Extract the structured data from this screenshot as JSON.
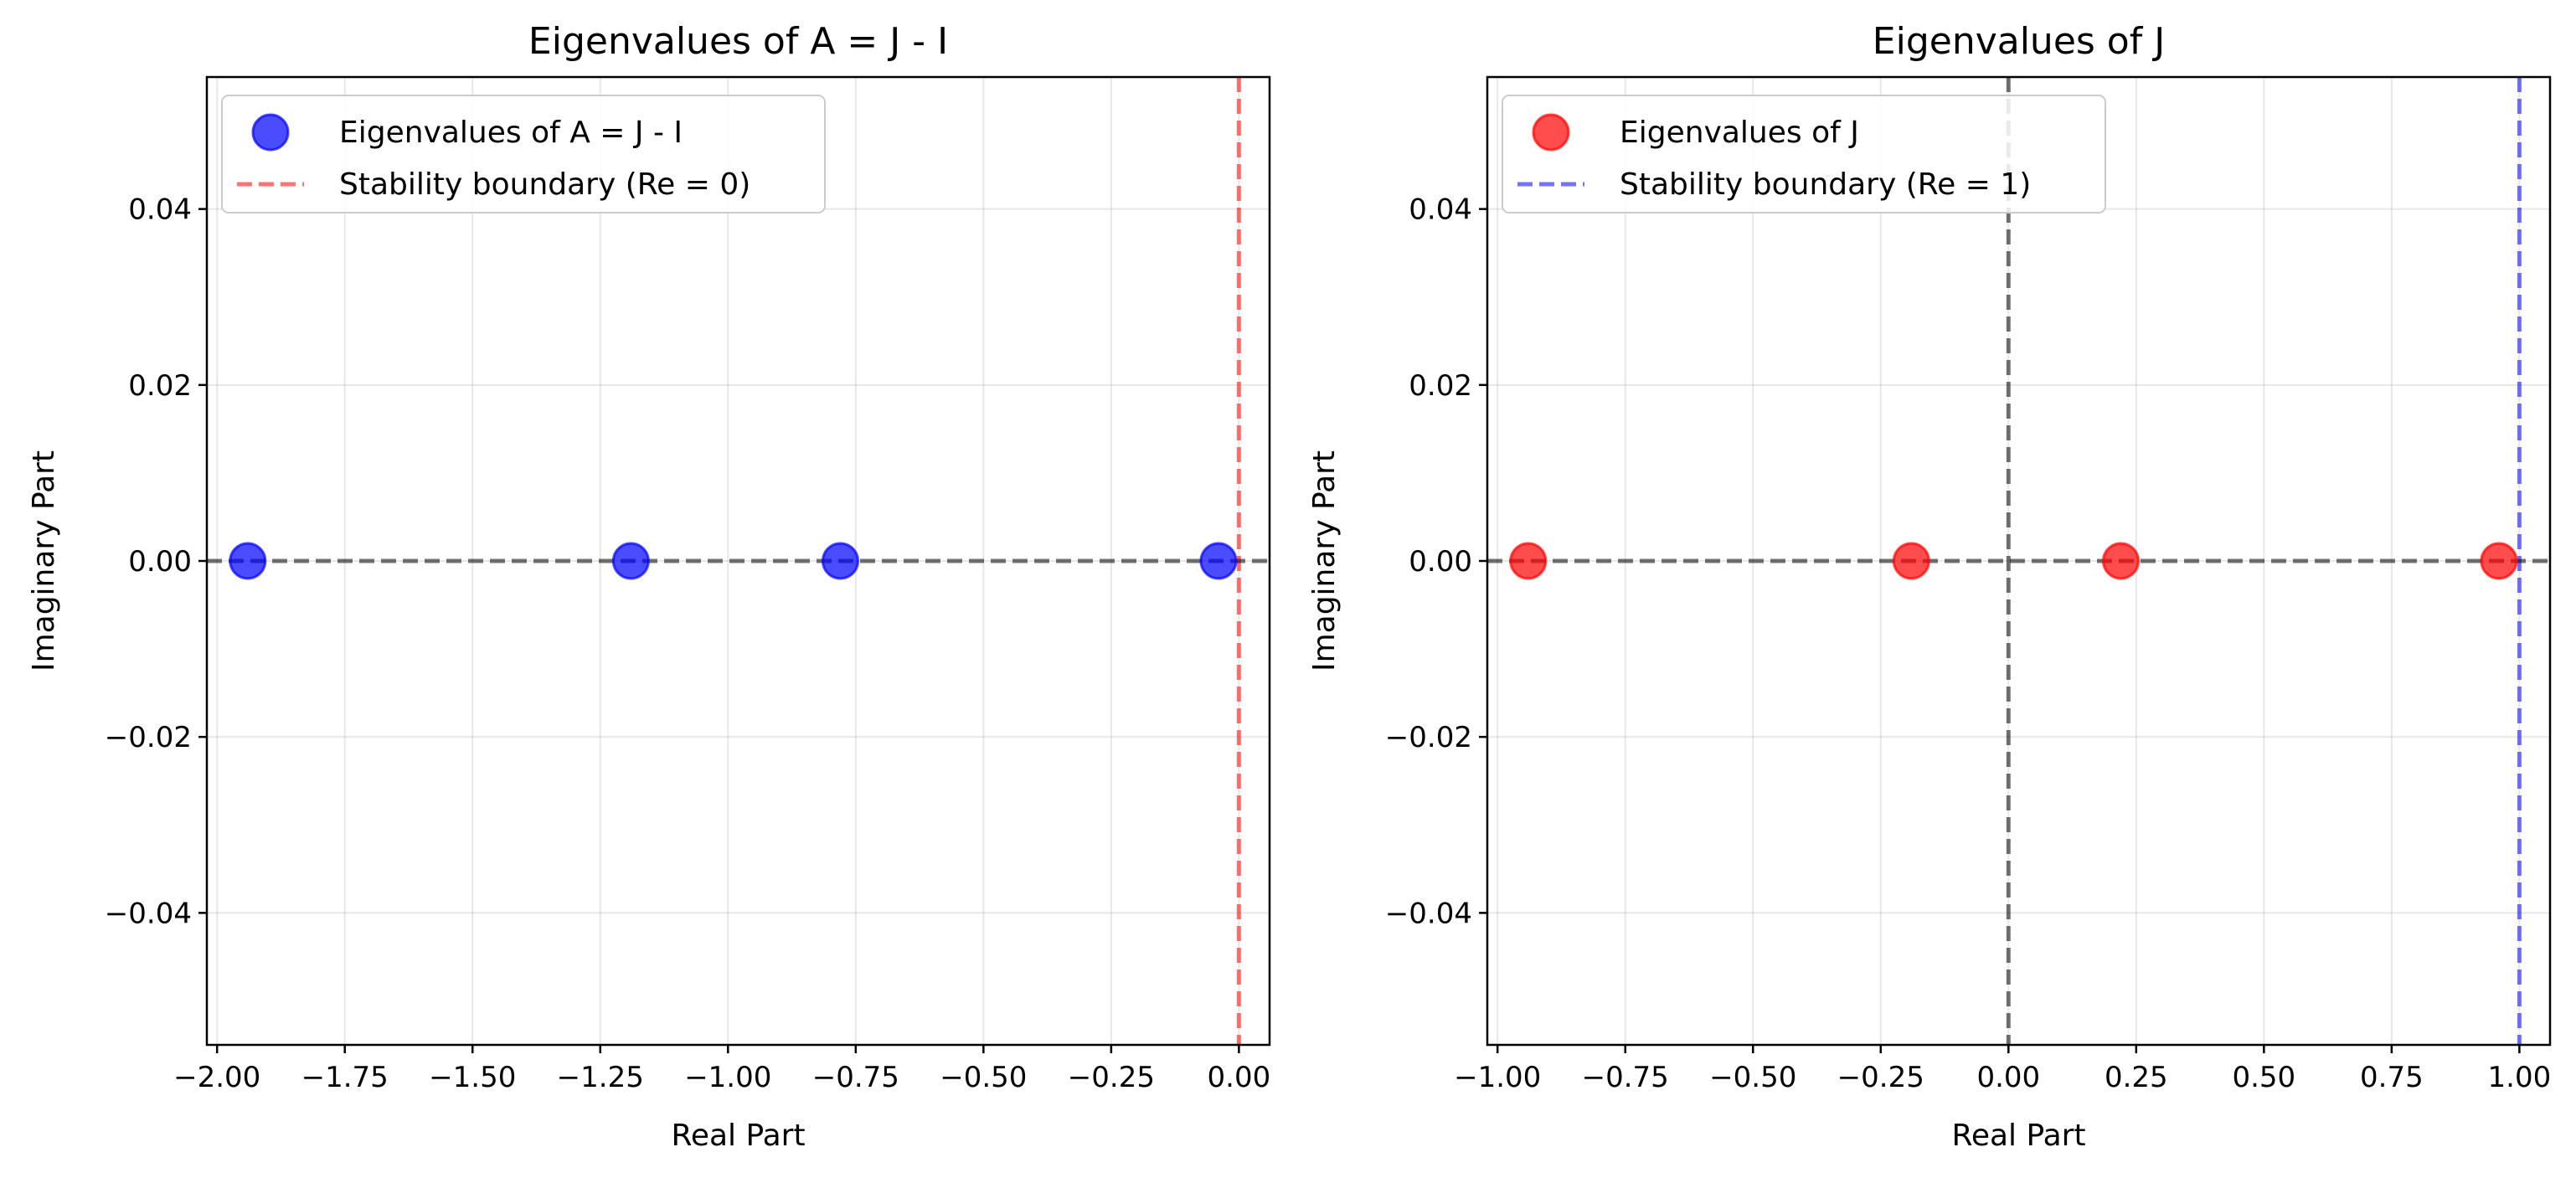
{
  "chart_data": [
    {
      "type": "scatter",
      "title": "Eigenvalues of A = J - I",
      "xlabel": "Real Part",
      "ylabel": "Imaginary Part",
      "xlim": [
        -2.02,
        0.06
      ],
      "ylim": [
        -0.055,
        0.055
      ],
      "xticks": [
        -2.0,
        -1.75,
        -1.5,
        -1.25,
        -1.0,
        -0.75,
        -0.5,
        -0.25,
        0.0
      ],
      "xtick_labels": [
        "−2.00",
        "−1.75",
        "−1.50",
        "−1.25",
        "−1.00",
        "−0.75",
        "−0.50",
        "−0.25",
        "0.00"
      ],
      "yticks": [
        0.04,
        0.02,
        0.0,
        -0.02,
        -0.04
      ],
      "ytick_labels": [
        "0.04",
        "0.02",
        "0.00",
        "−0.02",
        "−0.04"
      ],
      "grid": true,
      "legend_position": "top-left",
      "series": [
        {
          "name": "Eigenvalues of A = J - I",
          "color": "#0000ff",
          "x": [
            -1.94,
            -1.19,
            -0.78,
            -0.04
          ],
          "y": [
            0,
            0,
            0,
            0
          ]
        }
      ],
      "reference_lines": [
        {
          "name": "Stability boundary (Re = 0)",
          "orientation": "vertical",
          "value": 0,
          "color": "#ff0000",
          "legend": true
        },
        {
          "orientation": "horizontal",
          "value": 0,
          "color": "#000000",
          "legend": false
        }
      ]
    },
    {
      "type": "scatter",
      "title": "Eigenvalues of J",
      "xlabel": "Real Part",
      "ylabel": "Imaginary Part",
      "xlim": [
        -1.02,
        1.06
      ],
      "ylim": [
        -0.055,
        0.055
      ],
      "xticks": [
        -1.0,
        -0.75,
        -0.5,
        -0.25,
        0.0,
        0.25,
        0.5,
        0.75,
        1.0
      ],
      "xtick_labels": [
        "−1.00",
        "−0.75",
        "−0.50",
        "−0.25",
        "0.00",
        "0.25",
        "0.50",
        "0.75",
        "1.00"
      ],
      "yticks": [
        0.04,
        0.02,
        0.0,
        -0.02,
        -0.04
      ],
      "ytick_labels": [
        "0.04",
        "0.02",
        "0.00",
        "−0.02",
        "−0.04"
      ],
      "grid": true,
      "legend_position": "top-left",
      "series": [
        {
          "name": "Eigenvalues of J",
          "color": "#ff0000",
          "x": [
            -0.94,
            -0.19,
            0.22,
            0.96
          ],
          "y": [
            0,
            0,
            0,
            0
          ]
        }
      ],
      "reference_lines": [
        {
          "name": "Stability boundary (Re = 1)",
          "orientation": "vertical",
          "value": 1,
          "color": "#0000ff",
          "legend": true
        },
        {
          "orientation": "vertical",
          "value": 0,
          "color": "#000000",
          "legend": false
        },
        {
          "orientation": "horizontal",
          "value": 0,
          "color": "#000000",
          "legend": false
        }
      ]
    }
  ]
}
